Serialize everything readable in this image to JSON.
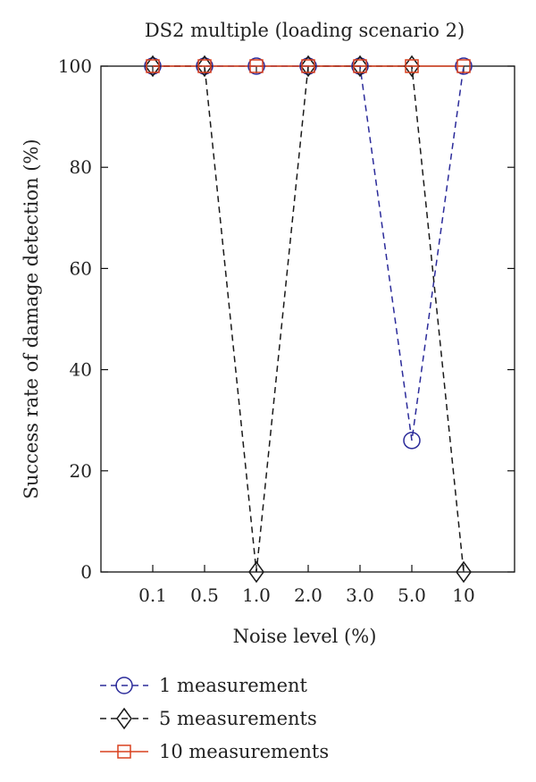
{
  "chart_data": {
    "type": "line",
    "title": "DS2 multiple (loading scenario 2)",
    "xlabel": "Noise level (%)",
    "ylabel": "Success rate of damage detection (%)",
    "categories": [
      "0.1",
      "0.5",
      "1.0",
      "2.0",
      "3.0",
      "5.0",
      "10"
    ],
    "ylim": [
      0,
      100
    ],
    "yticks": [
      0,
      20,
      40,
      60,
      80,
      100
    ],
    "grid": false,
    "legend_position": "bottom",
    "series": [
      {
        "name": "1 measurement",
        "values": [
          100,
          100,
          100,
          100,
          100,
          26,
          100
        ],
        "color": "#2b2b9a",
        "marker": "circle",
        "line_style": "dashed"
      },
      {
        "name": "5 measurements",
        "values": [
          100,
          100,
          0,
          100,
          100,
          100,
          0
        ],
        "color": "#1a1a1a",
        "marker": "diamond",
        "line_style": "dashed"
      },
      {
        "name": "10 measurements",
        "values": [
          100,
          100,
          100,
          100,
          100,
          100,
          100
        ],
        "color": "#d9401f",
        "marker": "square",
        "line_style": "solid"
      }
    ]
  }
}
